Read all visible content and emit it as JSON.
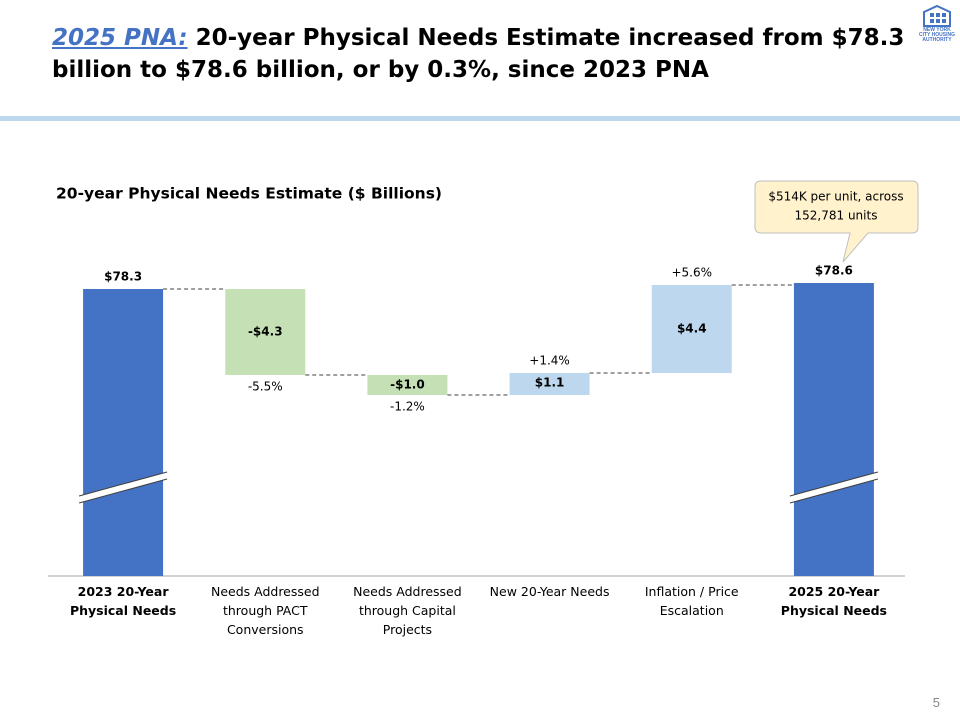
{
  "header": {
    "title_lead": "2025 PNA:",
    "title": "20-year Physical Needs Estimate increased from $78.3 billion to $78.6 billion, or by 0.3%, since 2023 PNA",
    "logo": "NEW YORK CITY HOUSING AUTHORITY"
  },
  "footer": {
    "page": "5"
  },
  "chart_data": {
    "type": "waterfall",
    "title": "20-year Physical Needs Estimate ($ Billions)",
    "categories": [
      "2023 20-Year Physical Needs",
      "Needs Addressed through PACT Conversions",
      "Needs Addressed through Capital Projects",
      "New 20-Year Needs",
      "Inflation / Price Escalation",
      "2025 20-Year Physical Needs"
    ],
    "values": [
      78.3,
      -4.3,
      -1.0,
      1.1,
      4.4,
      78.6
    ],
    "value_labels": [
      "$78.3",
      "-$4.3",
      "-$1.0",
      "$1.1",
      "$4.4",
      "$78.6"
    ],
    "totals": [
      true,
      false,
      false,
      false,
      false,
      true
    ],
    "colors": [
      "#4472c4",
      "#c5e0b4",
      "#c5e0b4",
      "#bdd7ee",
      "#bdd7ee",
      "#4472c4"
    ],
    "pct": [
      null,
      {
        "value": -5.5,
        "label": "-5.5%"
      },
      {
        "value": -1.2,
        "label": "-1.2%"
      },
      {
        "value": 1.4,
        "label": "+1.4%"
      },
      {
        "value": 5.6,
        "label": "+5.6%"
      },
      null
    ],
    "callout": [
      "$514K per unit, across",
      "152,781 units"
    ]
  }
}
